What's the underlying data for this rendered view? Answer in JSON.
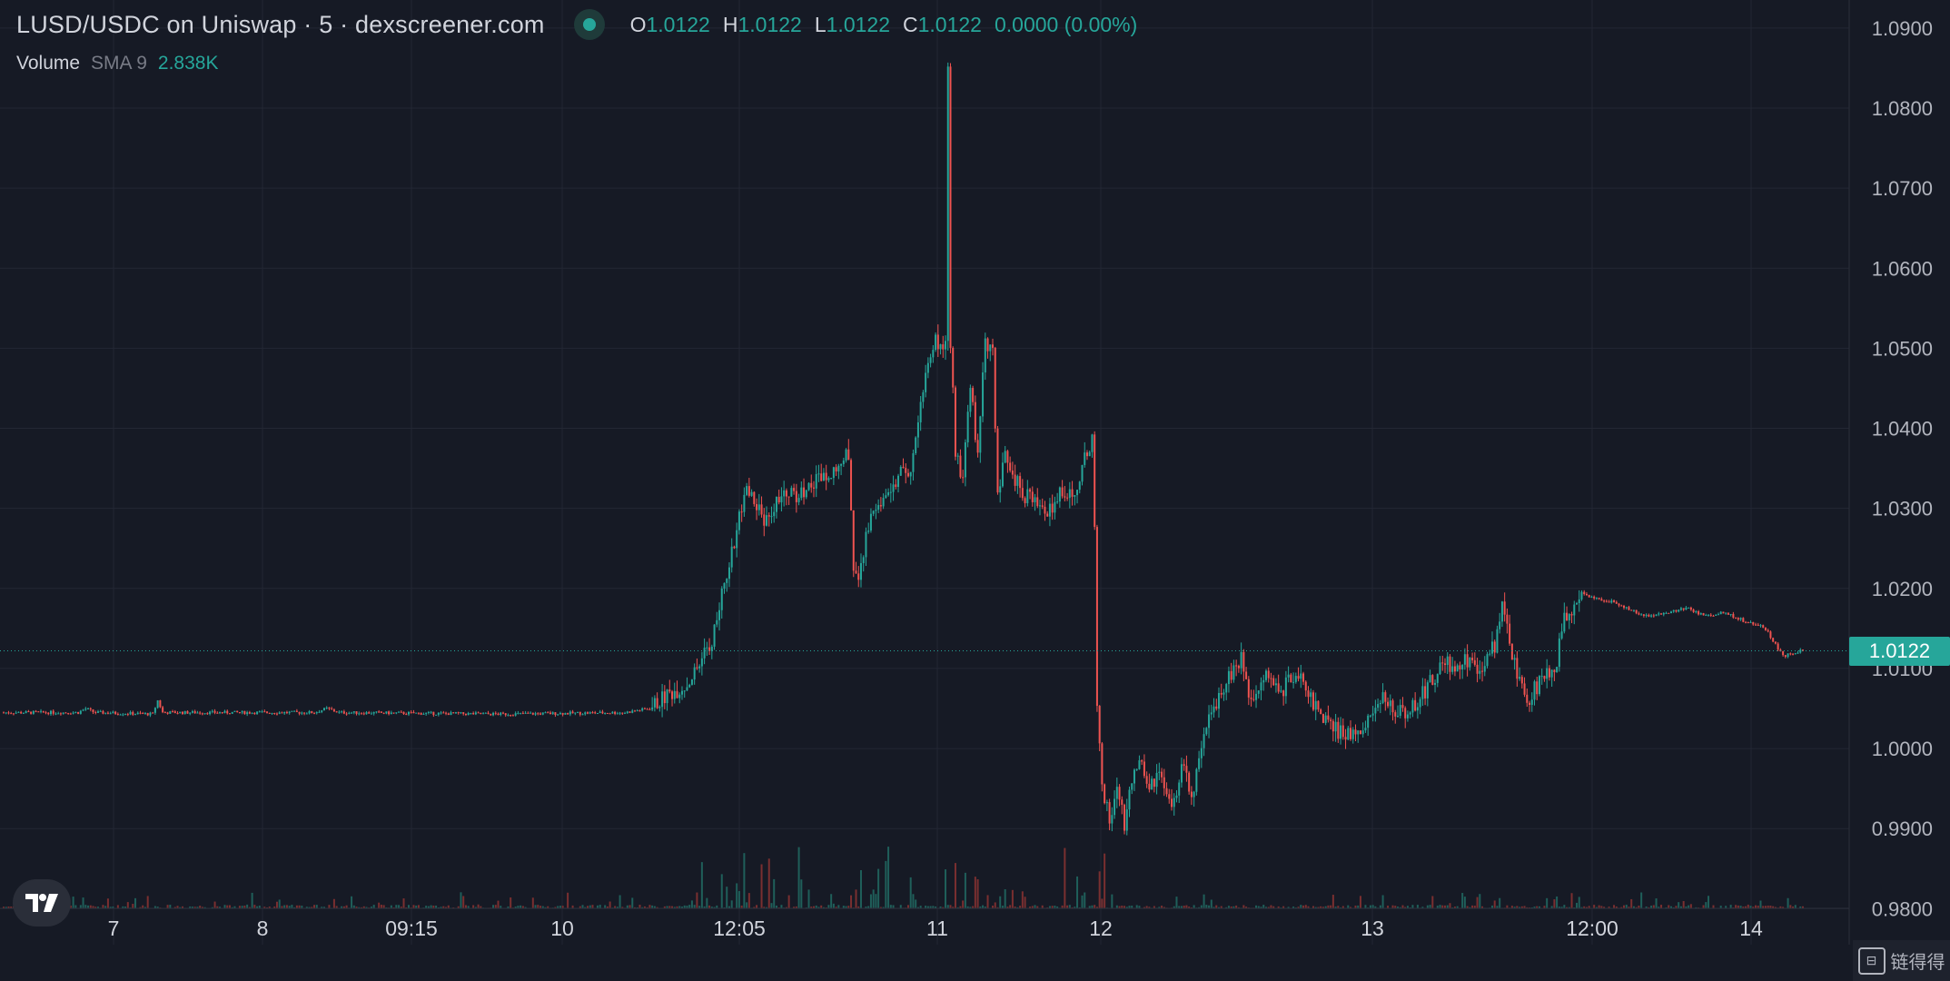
{
  "header": {
    "title": "LUSD/USDC on Uniswap · 5 · dexscreener.com",
    "ohlc": [
      {
        "key": "O",
        "value": "1.0122"
      },
      {
        "key": "H",
        "value": "1.0122"
      },
      {
        "key": "L",
        "value": "1.0122"
      },
      {
        "key": "C",
        "value": "1.0122"
      },
      {
        "key": "",
        "value": "0.0000 (0.00%)"
      }
    ],
    "volume_label": "Volume",
    "sma_label": "SMA 9",
    "sma_value": "2.838K"
  },
  "current_price_label": "1.0122",
  "corner_logo_text": "链得得",
  "colors": {
    "background": "#161a25",
    "up": "#26a69a",
    "down": "#ef5350",
    "grid": "#232734",
    "text": "#d1d4dc"
  },
  "chart_data": {
    "type": "candlestick",
    "y_ticks": [
      "1.0900",
      "1.0800",
      "1.0700",
      "1.0600",
      "1.0500",
      "1.0400",
      "1.0300",
      "1.0200",
      "1.0100",
      "1.0000",
      "0.9900",
      "0.9800"
    ],
    "ylim": [
      0.9755,
      1.0935
    ],
    "x_ticks": [
      "7",
      "8",
      "09:15",
      "10",
      "12:05",
      "11",
      "12",
      "13",
      "12:00",
      "14"
    ],
    "current_price": 1.0122,
    "price_path": [
      [
        0,
        1.0045
      ],
      [
        60,
        1.0045
      ],
      [
        66,
        1.005
      ],
      [
        73,
        1.0045
      ],
      [
        120,
        1.0043
      ],
      [
        124,
        1.006
      ],
      [
        128,
        1.0045
      ],
      [
        250,
        1.0045
      ],
      [
        260,
        1.005
      ],
      [
        270,
        1.0045
      ],
      [
        400,
        1.0043
      ],
      [
        500,
        1.0045
      ],
      [
        520,
        1.005
      ],
      [
        535,
        1.0068
      ],
      [
        550,
        1.008
      ],
      [
        560,
        1.0105
      ],
      [
        570,
        1.0135
      ],
      [
        578,
        1.019
      ],
      [
        585,
        1.024
      ],
      [
        592,
        1.0285
      ],
      [
        598,
        1.032
      ],
      [
        605,
        1.031
      ],
      [
        612,
        1.0285
      ],
      [
        620,
        1.03
      ],
      [
        630,
        1.0325
      ],
      [
        640,
        1.0315
      ],
      [
        650,
        1.033
      ],
      [
        660,
        1.0345
      ],
      [
        670,
        1.035
      ],
      [
        680,
        1.037
      ],
      [
        684,
        1.023
      ],
      [
        688,
        1.02
      ],
      [
        694,
        1.0275
      ],
      [
        700,
        1.029
      ],
      [
        710,
        1.031
      ],
      [
        720,
        1.034
      ],
      [
        730,
        1.0345
      ],
      [
        738,
        1.043
      ],
      [
        742,
        1.048
      ],
      [
        750,
        1.051
      ],
      [
        758,
        1.05
      ],
      [
        760,
        1.085
      ],
      [
        762,
        1.0505
      ],
      [
        766,
        1.0375
      ],
      [
        772,
        1.033
      ],
      [
        778,
        1.046
      ],
      [
        784,
        1.036
      ],
      [
        790,
        1.051
      ],
      [
        796,
        1.05
      ],
      [
        800,
        1.031
      ],
      [
        806,
        1.0365
      ],
      [
        812,
        1.034
      ],
      [
        820,
        1.032
      ],
      [
        830,
        1.0305
      ],
      [
        840,
        1.029
      ],
      [
        850,
        1.0325
      ],
      [
        860,
        1.0315
      ],
      [
        870,
        1.036
      ],
      [
        877,
        1.039
      ],
      [
        880,
        1.005
      ],
      [
        884,
        0.996
      ],
      [
        890,
        0.9905
      ],
      [
        896,
        0.9955
      ],
      [
        902,
        0.9905
      ],
      [
        908,
        0.996
      ],
      [
        914,
        0.9985
      ],
      [
        920,
        0.995
      ],
      [
        930,
        0.9965
      ],
      [
        940,
        0.992
      ],
      [
        950,
        0.9985
      ],
      [
        956,
        0.9935
      ],
      [
        964,
        0.9995
      ],
      [
        972,
        1.0045
      ],
      [
        980,
        1.0075
      ],
      [
        988,
        1.0095
      ],
      [
        996,
        1.011
      ],
      [
        1004,
        1.006
      ],
      [
        1012,
        1.009
      ],
      [
        1020,
        1.0085
      ],
      [
        1030,
        1.0075
      ],
      [
        1040,
        1.0095
      ],
      [
        1050,
        1.0075
      ],
      [
        1060,
        1.0035
      ],
      [
        1070,
        1.0025
      ],
      [
        1080,
        1.0015
      ],
      [
        1090,
        1.0025
      ],
      [
        1100,
        1.004
      ],
      [
        1110,
        1.006
      ],
      [
        1120,
        1.005
      ],
      [
        1130,
        1.0045
      ],
      [
        1140,
        1.0065
      ],
      [
        1150,
        1.0085
      ],
      [
        1160,
        1.011
      ],
      [
        1170,
        1.0095
      ],
      [
        1180,
        1.0115
      ],
      [
        1190,
        1.0095
      ],
      [
        1200,
        1.013
      ],
      [
        1206,
        1.0175
      ],
      [
        1212,
        1.013
      ],
      [
        1220,
        1.0085
      ],
      [
        1226,
        1.0055
      ],
      [
        1232,
        1.0075
      ],
      [
        1240,
        1.009
      ],
      [
        1250,
        1.011
      ],
      [
        1256,
        1.016
      ],
      [
        1262,
        1.0165
      ],
      [
        1268,
        1.0195
      ],
      [
        1276,
        1.019
      ],
      [
        1290,
        1.0185
      ],
      [
        1300,
        1.018
      ],
      [
        1320,
        1.0165
      ],
      [
        1340,
        1.017
      ],
      [
        1355,
        1.0175
      ],
      [
        1370,
        1.0165
      ],
      [
        1385,
        1.017
      ],
      [
        1400,
        1.016
      ],
      [
        1412,
        1.0155
      ],
      [
        1420,
        1.0145
      ],
      [
        1428,
        1.0125
      ],
      [
        1432,
        1.0115
      ],
      [
        1440,
        1.012
      ],
      [
        1448,
        1.0122
      ]
    ],
    "x_range": [
      0,
      1448
    ]
  }
}
